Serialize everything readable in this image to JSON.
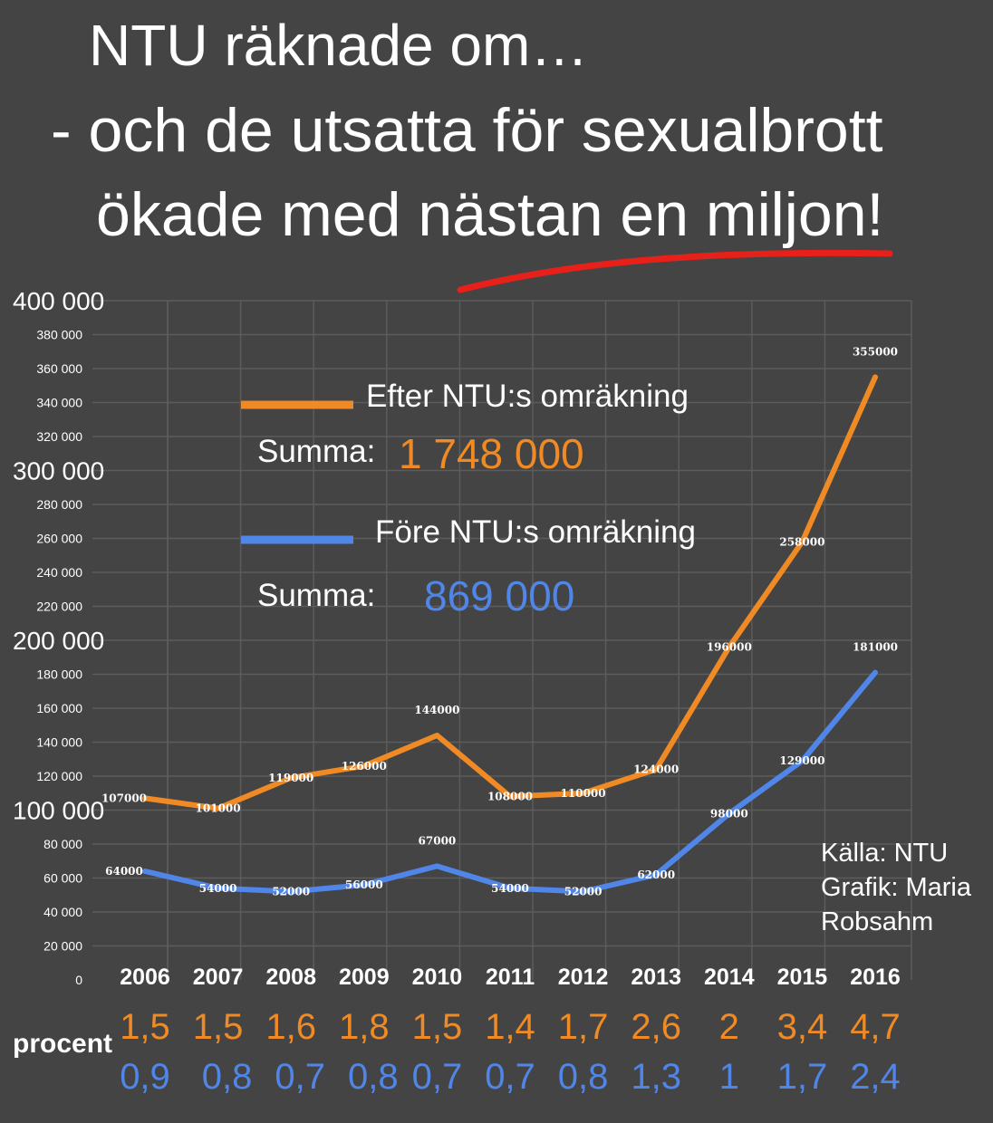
{
  "header": {
    "line1": "NTU räknade om…",
    "line2": "- och de utsatta för sexualbrott",
    "line3": "ökade med nästan en miljon!"
  },
  "colors": {
    "orange": "#f08a24",
    "blue": "#4f86e8",
    "underline": "#e8201a",
    "grid": "#5c5c5c"
  },
  "legend": {
    "after_label": "Efter NTU:s omräkning",
    "after_sum_label": "Summa:",
    "after_sum_value": "1 748 000",
    "before_label": "Före NTU:s omräkning",
    "before_sum_label": "Summa:",
    "before_sum_value": "869 000"
  },
  "credits": {
    "line1": "Källa: NTU",
    "line2": "Grafik: Maria",
    "line3": "Robsahm"
  },
  "percent_label": "procent",
  "chart_data": {
    "type": "line",
    "categories": [
      "2006",
      "2007",
      "2008",
      "2009",
      "2010",
      "2011",
      "2012",
      "2013",
      "2014",
      "2015",
      "2016"
    ],
    "ylim": [
      0,
      400000
    ],
    "y_ticks": [
      {
        "value": 0,
        "label": "0",
        "major": false
      },
      {
        "value": 20000,
        "label": "20 000",
        "major": false
      },
      {
        "value": 40000,
        "label": "40 000",
        "major": false
      },
      {
        "value": 60000,
        "label": "60 000",
        "major": false
      },
      {
        "value": 80000,
        "label": "80 000",
        "major": false
      },
      {
        "value": 100000,
        "label": "100 000",
        "major": true
      },
      {
        "value": 120000,
        "label": "120 000",
        "major": false
      },
      {
        "value": 140000,
        "label": "140 000",
        "major": false
      },
      {
        "value": 160000,
        "label": "160 000",
        "major": false
      },
      {
        "value": 180000,
        "label": "180 000",
        "major": false
      },
      {
        "value": 200000,
        "label": "200 000",
        "major": true
      },
      {
        "value": 220000,
        "label": "220 000",
        "major": false
      },
      {
        "value": 240000,
        "label": "240 000",
        "major": false
      },
      {
        "value": 260000,
        "label": "260 000",
        "major": false
      },
      {
        "value": 280000,
        "label": "280 000",
        "major": false
      },
      {
        "value": 300000,
        "label": "300 000",
        "major": true
      },
      {
        "value": 320000,
        "label": "320 000",
        "major": false
      },
      {
        "value": 340000,
        "label": "340 000",
        "major": false
      },
      {
        "value": 360000,
        "label": "360 000",
        "major": false
      },
      {
        "value": 380000,
        "label": "380 000",
        "major": false
      },
      {
        "value": 400000,
        "label": "400 000",
        "major": true
      }
    ],
    "grid": true,
    "series": [
      {
        "name": "Efter NTU:s omräkning",
        "color": "#f08a24",
        "values": [
          107000,
          101000,
          119000,
          126000,
          144000,
          108000,
          110000,
          124000,
          196000,
          258000,
          355000
        ],
        "percent": [
          "1,5",
          "1,5",
          "1,6",
          "1,8",
          "1,5",
          "1,4",
          "1,7",
          "2,6",
          "2",
          "3,4",
          "4,7"
        ]
      },
      {
        "name": "Före NTU:s omräkning",
        "color": "#4f86e8",
        "values": [
          64000,
          54000,
          52000,
          56000,
          67000,
          54000,
          52000,
          62000,
          98000,
          129000,
          181000
        ],
        "percent": [
          "0,9",
          "0,8",
          "0,7",
          "0,8",
          "0,7",
          "0,7",
          "0,8",
          "1,3",
          "1",
          "1,7",
          "2,4"
        ]
      }
    ]
  }
}
